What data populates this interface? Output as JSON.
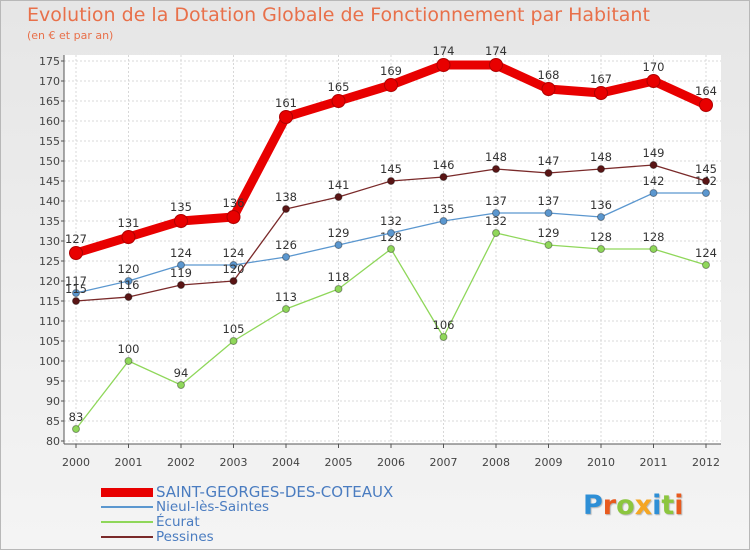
{
  "chart_data": {
    "type": "line",
    "title": "Evolution de la Dotation Globale de Fonctionnement par Habitant",
    "subtitle": "(en € et par an)",
    "xlabel": "",
    "ylabel": "",
    "ylim": [
      80,
      175
    ],
    "categories": [
      "2000",
      "2001",
      "2002",
      "2003",
      "2004",
      "2005",
      "2006",
      "2007",
      "2008",
      "2009",
      "2010",
      "2011",
      "2012"
    ],
    "y_ticks": [
      80,
      85,
      90,
      95,
      100,
      105,
      110,
      115,
      120,
      125,
      130,
      135,
      140,
      145,
      150,
      155,
      160,
      165,
      170,
      175
    ],
    "legend_position": "bottom-left",
    "series": [
      {
        "name": "SAINT-GEORGES-DES-COTEAUX",
        "color": "#e80000",
        "values": [
          127,
          131,
          135,
          136,
          161,
          165,
          169,
          174,
          174,
          168,
          167,
          170,
          164
        ]
      },
      {
        "name": "Nieul-lès-Saintes",
        "color": "#5b97cf",
        "values": [
          117,
          120,
          124,
          124,
          126,
          129,
          132,
          135,
          137,
          137,
          136,
          142,
          142
        ]
      },
      {
        "name": "Écurat",
        "color": "#8fd75a",
        "values": [
          83,
          100,
          94,
          105,
          113,
          118,
          128,
          106,
          132,
          129,
          128,
          128,
          124
        ]
      },
      {
        "name": "Pessines",
        "color": "#7a2a2a",
        "values": [
          115,
          116,
          119,
          120,
          138,
          141,
          145,
          146,
          148,
          147,
          148,
          149,
          145
        ]
      }
    ]
  },
  "logo": {
    "text": "Proxiti",
    "letters": [
      "P",
      "r",
      "o",
      "x",
      "i",
      "t",
      "i"
    ],
    "colors": [
      "#2e8fd6",
      "#e85a1e",
      "#8cc63f",
      "#f5a623",
      "#2e8fd6",
      "#8cc63f",
      "#e85a1e"
    ]
  }
}
